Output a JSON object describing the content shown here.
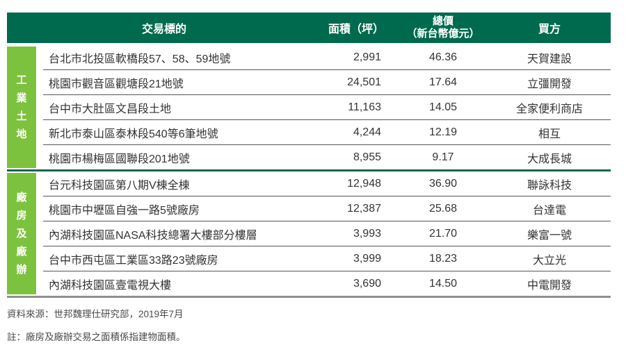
{
  "colors": {
    "header_green": "#006a4e",
    "sidebar_green": "#7dc23e",
    "row_separator": "#555555",
    "bottom_line_gray": "#8f8f8f",
    "body_text": "#333333"
  },
  "chart_data": {
    "type": "table",
    "headers": {
      "subject": "交易標的",
      "area": "面積（坪）",
      "price_line1": "總價",
      "price_line2": "（新台幣億元）",
      "buyer": "買方"
    },
    "columns": [
      "交易標的",
      "面積（坪）",
      "總價（新台幣億元）",
      "買方"
    ],
    "groups": [
      {
        "category": "工業土地",
        "rows": [
          {
            "subject": "台北市北投區軟橋段57、58、59地號",
            "area": "2,991",
            "price": "46.36",
            "buyer": "天賀建設"
          },
          {
            "subject": "桃園市觀音區觀塘段21地號",
            "area": "24,501",
            "price": "17.64",
            "buyer": "立彊開發"
          },
          {
            "subject": "台中市大肚區文昌段土地",
            "area": "11,163",
            "price": "14.05",
            "buyer": "全家便利商店"
          },
          {
            "subject": "新北市泰山區泰林段540等6筆地號",
            "area": "4,244",
            "price": "12.19",
            "buyer": "相互"
          },
          {
            "subject": "桃園市楊梅區國聯段201地號",
            "area": "8,955",
            "price": "9.17",
            "buyer": "大成長城"
          }
        ]
      },
      {
        "category": "廠房及廠辦",
        "rows": [
          {
            "subject": "台元科技園區第八期V棟全棟",
            "area": "12,948",
            "price": "36.90",
            "buyer": "聯詠科技"
          },
          {
            "subject": "桃園市中壢區自強一路5號廠房",
            "area": "12,387",
            "price": "25.68",
            "buyer": "台達電"
          },
          {
            "subject": "內湖科技園區NASA科技總署大樓部分樓層",
            "area": "3,993",
            "price": "21.70",
            "buyer": "樂富一號"
          },
          {
            "subject": "台中市西屯區工業區33路23號廠房",
            "area": "3,999",
            "price": "18.23",
            "buyer": "大立光"
          },
          {
            "subject": "內湖科技園區壹電視大樓",
            "area": "3,690",
            "price": "14.50",
            "buyer": "中電開發"
          }
        ]
      }
    ]
  },
  "footer": {
    "source": "資料來源：世邦魏理仕研究部，2019年7月",
    "note": "註：廠房及廠辦交易之面積係指建物面積。"
  }
}
